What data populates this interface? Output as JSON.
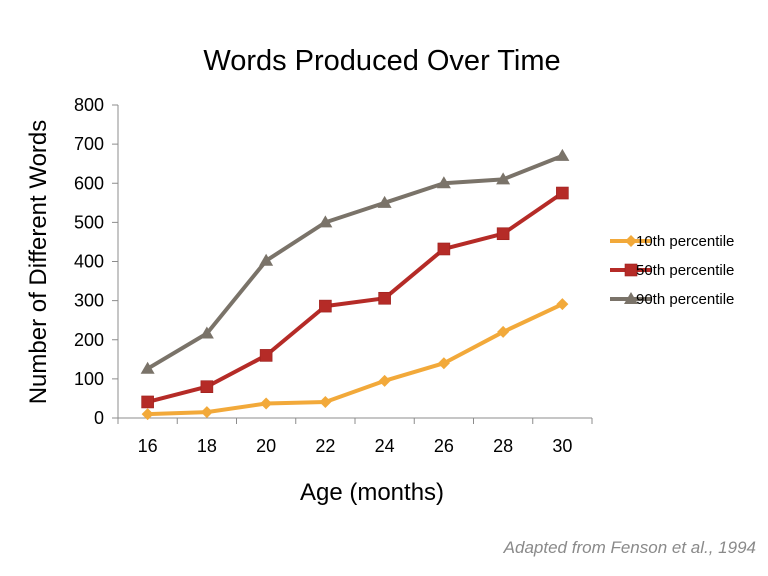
{
  "chart_data": {
    "type": "line",
    "title": "Words Produced Over Time",
    "xlabel": "Age (months)",
    "ylabel": "Number of Different Words",
    "x": [
      16,
      18,
      20,
      22,
      24,
      26,
      28,
      30
    ],
    "x_ticks": [
      "16",
      "18",
      "20",
      "22",
      "24",
      "26",
      "28",
      "30"
    ],
    "ylim": [
      0,
      800
    ],
    "y_ticks": [
      "0",
      "100",
      "200",
      "300",
      "400",
      "500",
      "600",
      "700",
      "800"
    ],
    "grid": false,
    "legend_position": "right",
    "series": [
      {
        "name": "10th percentile",
        "color": "#f2a93a",
        "marker": "diamond",
        "values": [
          10,
          15,
          37,
          41,
          95,
          140,
          220,
          291
        ]
      },
      {
        "name": "50th percentile",
        "color": "#b52b27",
        "marker": "square",
        "values": [
          41,
          80,
          160,
          286,
          306,
          432,
          471,
          575
        ]
      },
      {
        "name": "90th percentile",
        "color": "#7a7369",
        "marker": "triangle",
        "values": [
          126,
          216,
          402,
          500,
          550,
          600,
          610,
          670
        ]
      }
    ]
  },
  "source_note": "Adapted from Fenson et al., 1994"
}
